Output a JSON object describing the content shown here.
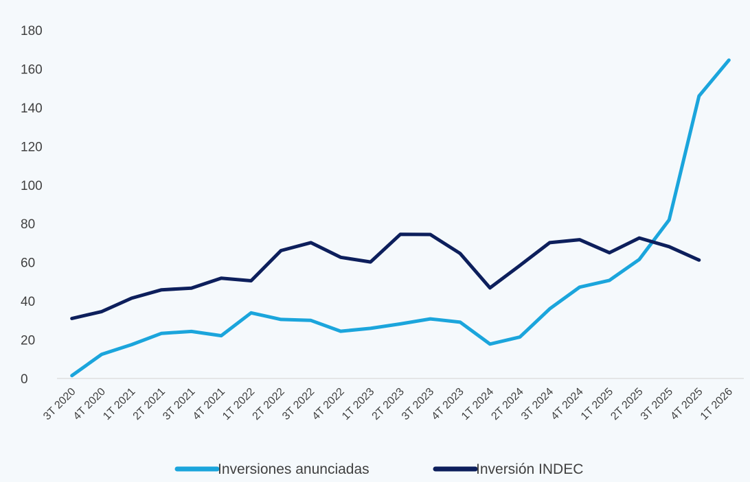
{
  "chart_data": {
    "type": "line",
    "title": "",
    "xlabel": "",
    "ylabel": "",
    "ylim": [
      0,
      180
    ],
    "yticks": [
      0,
      20,
      40,
      60,
      80,
      100,
      120,
      140,
      160,
      180
    ],
    "grid": false,
    "legend_position": "bottom",
    "categories": [
      "3T 2020",
      "4T 2020",
      "1T 2021",
      "2T 2021",
      "3T 2021",
      "4T 2021",
      "1T 2022",
      "2T 2022",
      "3T 2022",
      "4T 2022",
      "1T 2023",
      "2T 2023",
      "3T 2023",
      "4T 2023",
      "1T 2024",
      "2T 2024",
      "3T 2024",
      "4T 2024",
      "1T 2025",
      "2T 2025",
      "3T 2025",
      "4T 2025",
      "1T 2026"
    ],
    "series": [
      {
        "name": "Inversiones anunciadas",
        "color": "#1ba5dc",
        "values": [
          1.5,
          12.5,
          17.5,
          23.3,
          24.3,
          22.1,
          33.9,
          30.5,
          30.0,
          24.4,
          25.9,
          28.2,
          30.8,
          29.1,
          17.8,
          21.4,
          36.0,
          47.2,
          50.7,
          61.5,
          82.0,
          146.0,
          164.5
        ]
      },
      {
        "name": "Inversión INDEC",
        "color": "#0d1f5c",
        "values": [
          31.0,
          34.6,
          41.5,
          45.8,
          46.7,
          51.8,
          50.5,
          66.1,
          70.2,
          62.6,
          60.2,
          74.5,
          74.4,
          64.6,
          46.8,
          58.4,
          70.2,
          71.7,
          65.0,
          72.6,
          68.1,
          61.2,
          null
        ]
      }
    ]
  }
}
